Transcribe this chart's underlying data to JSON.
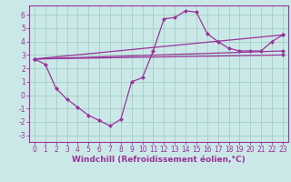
{
  "xlabel": "Windchill (Refroidissement éolien,°C)",
  "bg_color": "#cbe8e8",
  "line_color": "#993399",
  "xlim": [
    -0.5,
    23.5
  ],
  "ylim": [
    -3.5,
    6.7
  ],
  "xticks": [
    0,
    1,
    2,
    3,
    4,
    5,
    6,
    7,
    8,
    9,
    10,
    11,
    12,
    13,
    14,
    15,
    16,
    17,
    18,
    19,
    20,
    21,
    22,
    23
  ],
  "yticks": [
    -3,
    -2,
    -1,
    0,
    1,
    2,
    3,
    4,
    5,
    6
  ],
  "series1_x": [
    0,
    1,
    2,
    3,
    4,
    5,
    6,
    7,
    8,
    9,
    10,
    11,
    12,
    13,
    14,
    15,
    16,
    17,
    18,
    19,
    20,
    21,
    22,
    23
  ],
  "series1_y": [
    2.7,
    2.3,
    0.5,
    -0.3,
    -0.9,
    -1.5,
    -1.9,
    -2.3,
    -1.8,
    1.0,
    1.3,
    3.3,
    5.7,
    5.8,
    6.3,
    6.2,
    4.6,
    4.0,
    3.5,
    3.3,
    3.3,
    3.3,
    4.0,
    4.5
  ],
  "series2_x": [
    0,
    23
  ],
  "series2_y": [
    2.7,
    4.5
  ],
  "series3_x": [
    0,
    23
  ],
  "series3_y": [
    2.7,
    3.3
  ],
  "series4_x": [
    0,
    23
  ],
  "series4_y": [
    2.7,
    3.0
  ],
  "marker": "D",
  "markersize": 2.5,
  "linewidth": 0.9,
  "grid_color": "#99ccbb",
  "xlabel_fontsize": 6.5,
  "tick_fontsize": 5.5
}
